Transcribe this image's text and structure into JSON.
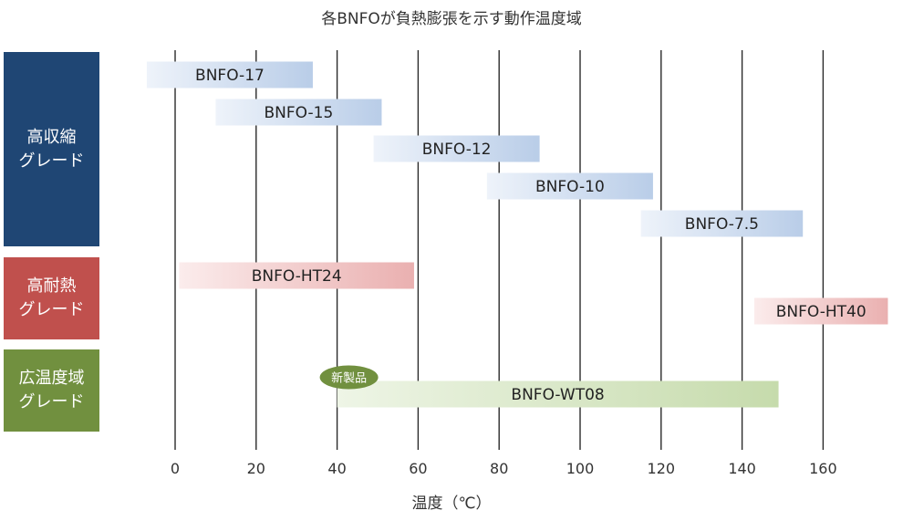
{
  "chart_data": {
    "type": "gantt",
    "title": "各BNFOが負熱膨張を示す動作温度域",
    "xlabel": "温度（℃）",
    "xlim": [
      -7,
      180
    ],
    "xticks": [
      0,
      20,
      40,
      60,
      80,
      100,
      120,
      140,
      160
    ],
    "groups": [
      {
        "line1": "高収縮",
        "line2": "グレード",
        "color": "#1f4674"
      },
      {
        "line1": "高耐熱",
        "line2": "グレード",
        "color": "#c0504d"
      },
      {
        "line1": "広温度域",
        "line2": "グレード",
        "color": "#71903f"
      }
    ],
    "bars": [
      {
        "name": "BNFO-17",
        "group": 0,
        "start": -7,
        "end": 34
      },
      {
        "name": "BNFO-15",
        "group": 0,
        "start": 10,
        "end": 51
      },
      {
        "name": "BNFO-12",
        "group": 0,
        "start": 49,
        "end": 90
      },
      {
        "name": "BNFO-10",
        "group": 0,
        "start": 77,
        "end": 118
      },
      {
        "name": "BNFO-7.5",
        "group": 0,
        "start": 115,
        "end": 155
      },
      {
        "name": "BNFO-HT24",
        "group": 1,
        "start": 1,
        "end": 59
      },
      {
        "name": "BNFO-HT40",
        "group": 1,
        "start": 143,
        "end": 176
      },
      {
        "name": "BNFO-WT08",
        "group": 2,
        "start": 40,
        "end": 149
      }
    ],
    "badge": {
      "text": "新製品",
      "bar": "BNFO-WT08",
      "color": "#71903f"
    },
    "gridlines": "vertical"
  }
}
